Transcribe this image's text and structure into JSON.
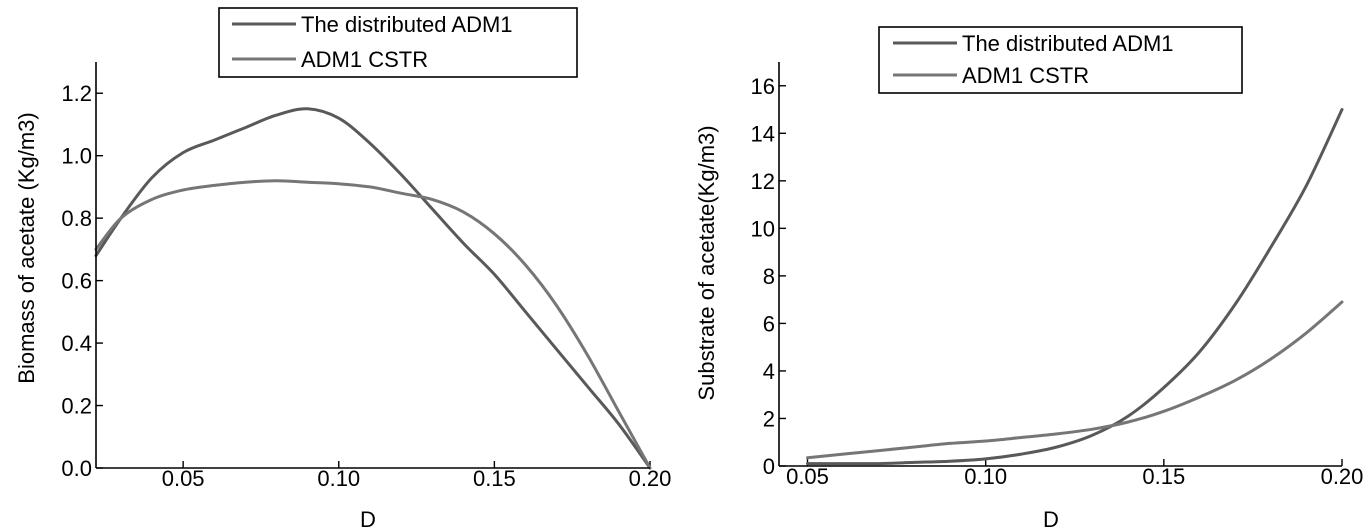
{
  "chart_data": [
    {
      "type": "line",
      "xlabel": "D",
      "ylabel": "Biomass of acetate (Kg/m3)",
      "xlim": [
        0.022,
        0.2
      ],
      "ylim": [
        0,
        1.3
      ],
      "xticks": [
        "0.05",
        "0.10",
        "0.15",
        "0.20"
      ],
      "xtick_values": [
        0.05,
        0.1,
        0.15,
        0.2
      ],
      "yticks": [
        "0.0",
        "0.2",
        "0.4",
        "0.6",
        "0.8",
        "1.0",
        "1.2"
      ],
      "ytick_values": [
        0,
        0.2,
        0.4,
        0.6,
        0.8,
        1.0,
        1.2
      ],
      "legend_position": "top",
      "grid": false,
      "series": [
        {
          "name": "The distributed ADM1",
          "color": "#595959",
          "x": [
            0.022,
            0.03,
            0.04,
            0.05,
            0.06,
            0.07,
            0.08,
            0.09,
            0.1,
            0.11,
            0.12,
            0.13,
            0.14,
            0.15,
            0.16,
            0.17,
            0.18,
            0.19,
            0.2
          ],
          "y": [
            0.68,
            0.8,
            0.93,
            1.01,
            1.05,
            1.09,
            1.13,
            1.15,
            1.12,
            1.04,
            0.94,
            0.83,
            0.72,
            0.62,
            0.5,
            0.38,
            0.26,
            0.14,
            0.0
          ]
        },
        {
          "name": "ADM1 CSTR",
          "color": "#767676",
          "x": [
            0.022,
            0.03,
            0.04,
            0.05,
            0.06,
            0.07,
            0.08,
            0.09,
            0.1,
            0.11,
            0.12,
            0.13,
            0.14,
            0.15,
            0.16,
            0.17,
            0.18,
            0.19,
            0.2
          ],
          "y": [
            0.7,
            0.8,
            0.86,
            0.89,
            0.905,
            0.915,
            0.92,
            0.915,
            0.91,
            0.9,
            0.88,
            0.86,
            0.82,
            0.75,
            0.65,
            0.52,
            0.36,
            0.18,
            0.0
          ]
        }
      ]
    },
    {
      "type": "line",
      "xlabel": "D",
      "ylabel": "Substrate of acetate(Kg/m3)",
      "xlim": [
        0.042,
        0.2
      ],
      "ylim": [
        0,
        17
      ],
      "xticks": [
        "0.05",
        "0.10",
        "0.15",
        "0.20"
      ],
      "xtick_values": [
        0.05,
        0.1,
        0.15,
        0.2
      ],
      "yticks": [
        "0",
        "2",
        "4",
        "6",
        "8",
        "10",
        "12",
        "14",
        "16"
      ],
      "ytick_values": [
        0,
        2,
        4,
        6,
        8,
        10,
        12,
        14,
        16
      ],
      "legend_position": "top",
      "grid": false,
      "series": [
        {
          "name": "The distributed ADM1",
          "color": "#595959",
          "x": [
            0.05,
            0.06,
            0.07,
            0.08,
            0.09,
            0.1,
            0.11,
            0.12,
            0.13,
            0.14,
            0.15,
            0.16,
            0.17,
            0.18,
            0.19,
            0.2
          ],
          "y": [
            0.1,
            0.1,
            0.1,
            0.15,
            0.2,
            0.3,
            0.5,
            0.8,
            1.3,
            2.1,
            3.3,
            4.8,
            6.8,
            9.2,
            11.8,
            15.0
          ]
        },
        {
          "name": "ADM1 CSTR",
          "color": "#767676",
          "x": [
            0.05,
            0.06,
            0.07,
            0.08,
            0.09,
            0.1,
            0.11,
            0.12,
            0.13,
            0.14,
            0.15,
            0.16,
            0.17,
            0.18,
            0.19,
            0.2
          ],
          "y": [
            0.35,
            0.5,
            0.65,
            0.8,
            0.95,
            1.05,
            1.2,
            1.35,
            1.55,
            1.85,
            2.3,
            2.9,
            3.6,
            4.5,
            5.6,
            6.9
          ]
        }
      ]
    }
  ]
}
